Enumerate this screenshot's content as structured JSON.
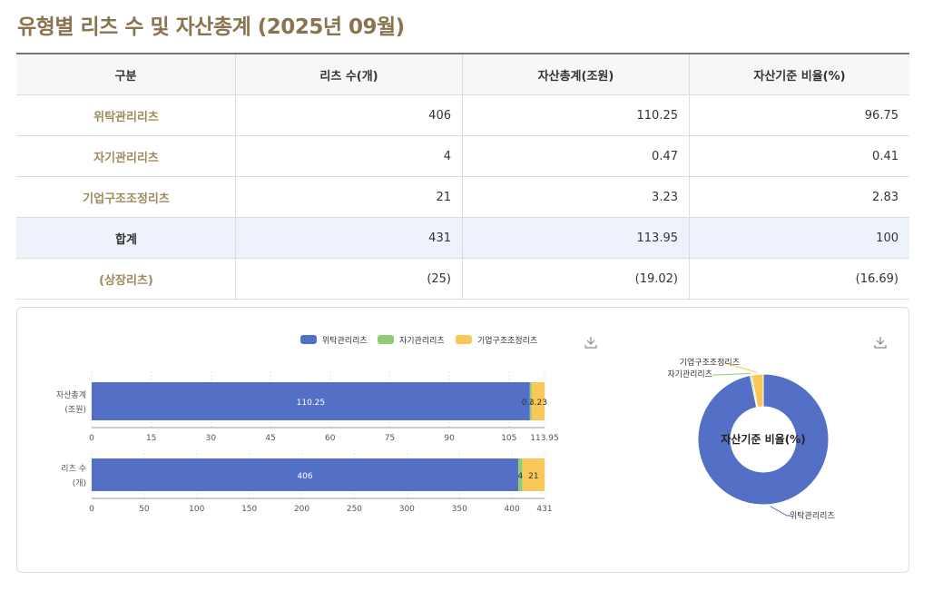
{
  "title": "유형별 리츠 수 및 자산총계 (2025년 09월)",
  "table": {
    "headers": [
      "구분",
      "리츠 수(개)",
      "자산총계(조원)",
      "자산기준 비율(%)"
    ],
    "rows": [
      {
        "label": "위탁관리리츠",
        "count": "406",
        "assets": "110.25",
        "ratio": "96.75"
      },
      {
        "label": "자기관리리츠",
        "count": "4",
        "assets": "0.47",
        "ratio": "0.41"
      },
      {
        "label": "기업구조조정리츠",
        "count": "21",
        "assets": "3.23",
        "ratio": "2.83"
      },
      {
        "label": "합계",
        "count": "431",
        "assets": "113.95",
        "ratio": "100"
      },
      {
        "label": "(상장리츠)",
        "count": "(25)",
        "assets": "(19.02)",
        "ratio": "(16.69)"
      }
    ]
  },
  "chart_data": [
    {
      "type": "bar",
      "orientation": "horizontal",
      "stacked": true,
      "categories": [
        "자산총계\n(조원)"
      ],
      "series": [
        {
          "name": "위탁관리리츠",
          "values": [
            110.25
          ],
          "color": "#5470c6"
        },
        {
          "name": "자기관리리츠",
          "values": [
            0.47
          ],
          "color": "#91cc75"
        },
        {
          "name": "기업구조조정리츠",
          "values": [
            3.23
          ],
          "color": "#fac858"
        }
      ],
      "xlim": [
        0,
        113.95
      ],
      "xticks": [
        "0",
        "15",
        "30",
        "45",
        "60",
        "75",
        "90",
        "105",
        "113.95"
      ],
      "tickvals": [
        0,
        15,
        30,
        45,
        60,
        75,
        90,
        105,
        113.95
      ],
      "legend": "top"
    },
    {
      "type": "bar",
      "orientation": "horizontal",
      "stacked": true,
      "categories": [
        "리츠 수\n(개)"
      ],
      "series": [
        {
          "name": "위탁관리리츠",
          "values": [
            406
          ],
          "color": "#5470c6"
        },
        {
          "name": "자기관리리츠",
          "values": [
            4
          ],
          "color": "#91cc75"
        },
        {
          "name": "기업구조조정리츠",
          "values": [
            21
          ],
          "color": "#fac858"
        }
      ],
      "xlim": [
        0,
        431
      ],
      "xticks": [
        "0",
        "50",
        "100",
        "150",
        "200",
        "250",
        "300",
        "350",
        "400",
        "431"
      ],
      "tickvals": [
        0,
        50,
        100,
        150,
        200,
        250,
        300,
        350,
        400,
        431
      ],
      "legend": "top"
    },
    {
      "type": "pie",
      "donut": true,
      "title": "자산기준 비율(%)",
      "categories": [
        "위탁관리리츠",
        "자기관리리츠",
        "기업구조조정리츠"
      ],
      "values": [
        96.75,
        0.41,
        2.83
      ],
      "colors": [
        "#5470c6",
        "#91cc75",
        "#fac858"
      ]
    }
  ],
  "icons": {
    "download": "download-icon"
  }
}
